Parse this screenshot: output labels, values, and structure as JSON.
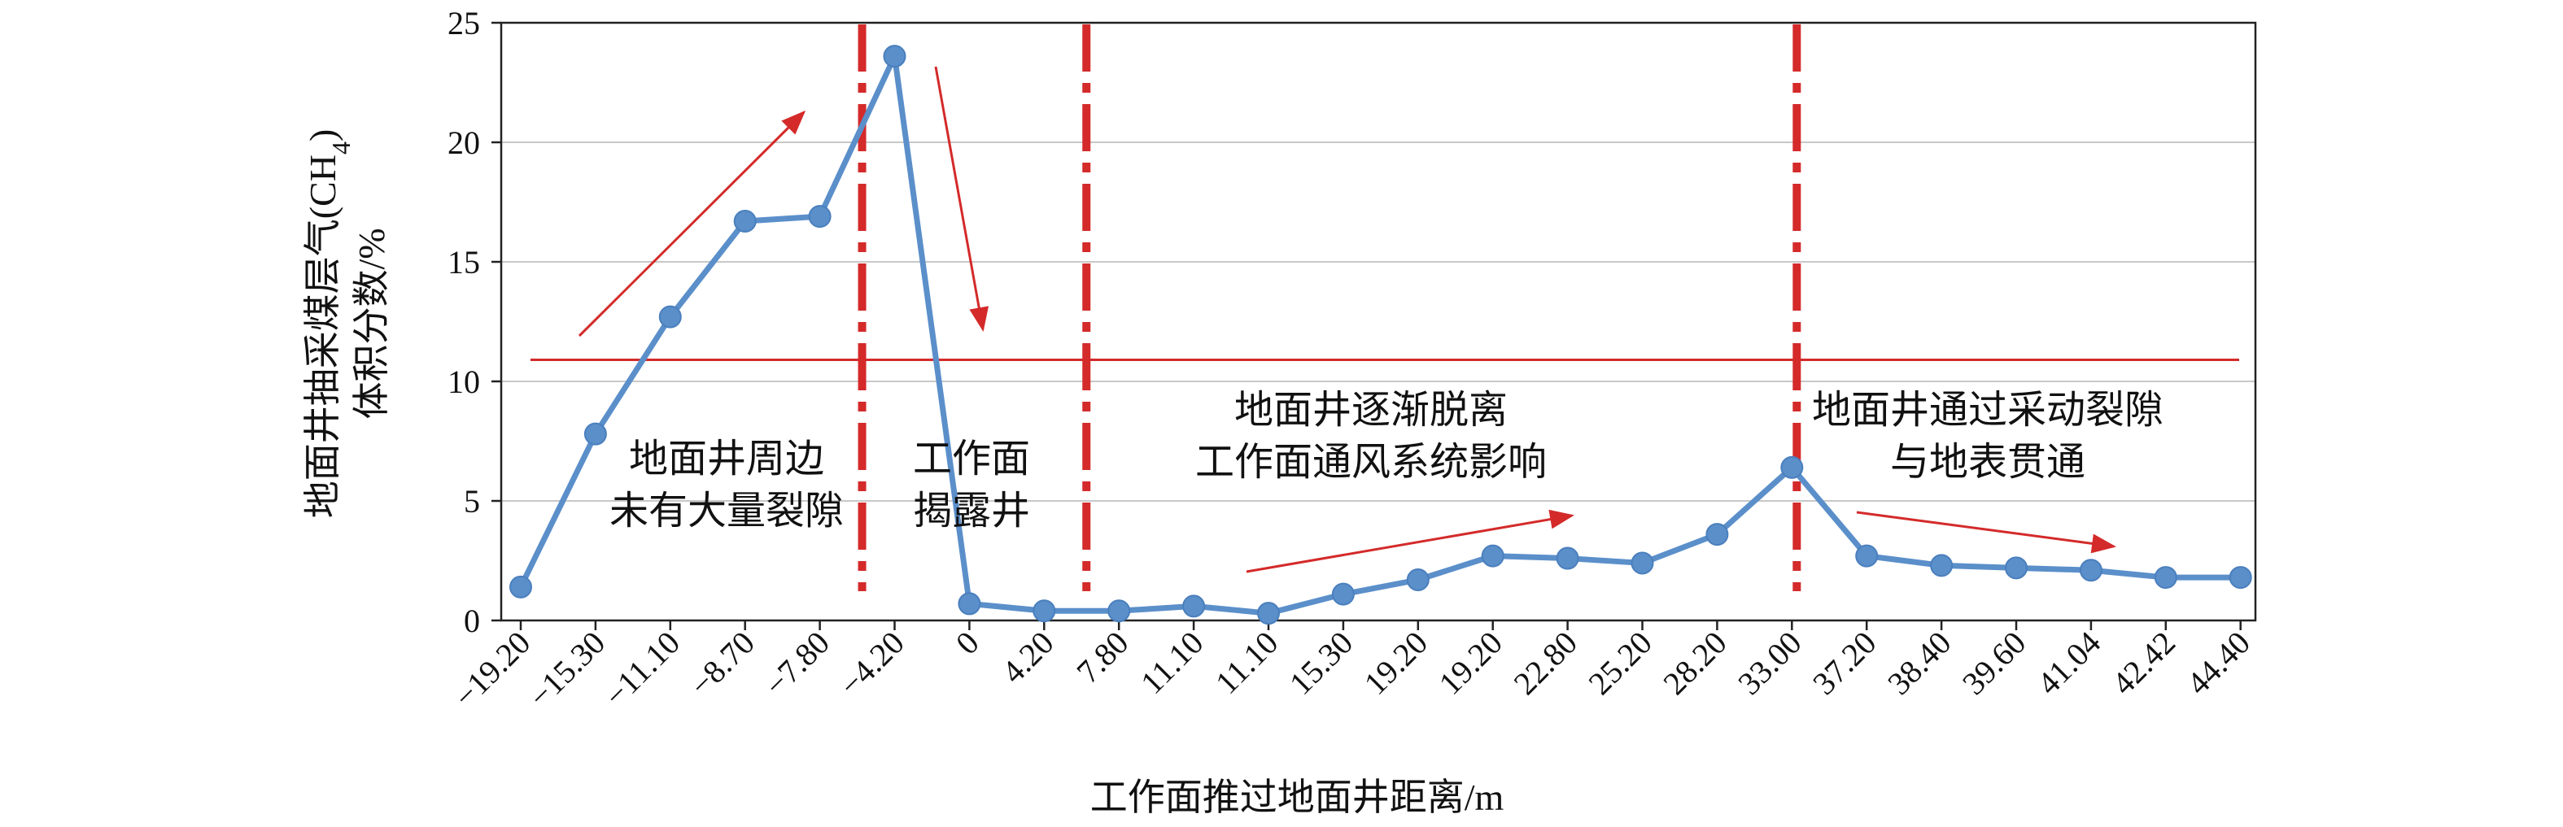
{
  "chart_data": {
    "type": "line",
    "xlabel": "工作面推过地面井距离/m",
    "ylabel_line1": "地面井抽采煤层气(CH",
    "ylabel_sub": "4",
    "ylabel_line1_end": ")",
    "ylabel_line2": "体积分数/%",
    "ylim": [
      0,
      25
    ],
    "yticks": [
      "0",
      "5",
      "10",
      "15",
      "20",
      "25"
    ],
    "grid": true,
    "categories": [
      "−19.20",
      "−15.30",
      "−11.10",
      "−8.70",
      "−7.80",
      "−4.20",
      "0",
      "4.20",
      "7.80",
      "11.10",
      "11.10",
      "15.30",
      "19.20",
      "19.20",
      "22.80",
      "25.20",
      "28.20",
      "33.00",
      "37.20",
      "38.40",
      "39.60",
      "41.04",
      "42.42",
      "44.40"
    ],
    "series": [
      {
        "values": [
          1.4,
          7.8,
          12.7,
          16.7,
          16.9,
          23.6,
          0.7,
          0.4,
          0.4,
          0.6,
          0.3,
          1.1,
          1.7,
          2.7,
          2.6,
          2.4,
          3.6,
          6.4,
          2.7,
          2.3,
          2.2,
          2.1,
          1.8,
          1.8
        ],
        "color": "#5b8fca"
      }
    ],
    "threshold_line": {
      "value": 10.9,
      "color": "#d42a2a"
    },
    "dashdot_lines": [
      {
        "after_index": 4.5,
        "color": "#d42a2a"
      },
      {
        "after_index": 7.5,
        "color": "#d42a2a"
      },
      {
        "after_index": 17.0,
        "color": "#d42a2a"
      }
    ],
    "annotations": [
      {
        "lines": [
          "地面井周边",
          "未有大量裂隙"
        ]
      },
      {
        "lines": [
          "工作面",
          "揭露井"
        ]
      },
      {
        "lines": [
          "地面井逐渐脱离",
          "工作面通风系统影响"
        ]
      },
      {
        "lines": [
          "地面井通过采动裂隙",
          "与地表贯通"
        ]
      }
    ]
  }
}
